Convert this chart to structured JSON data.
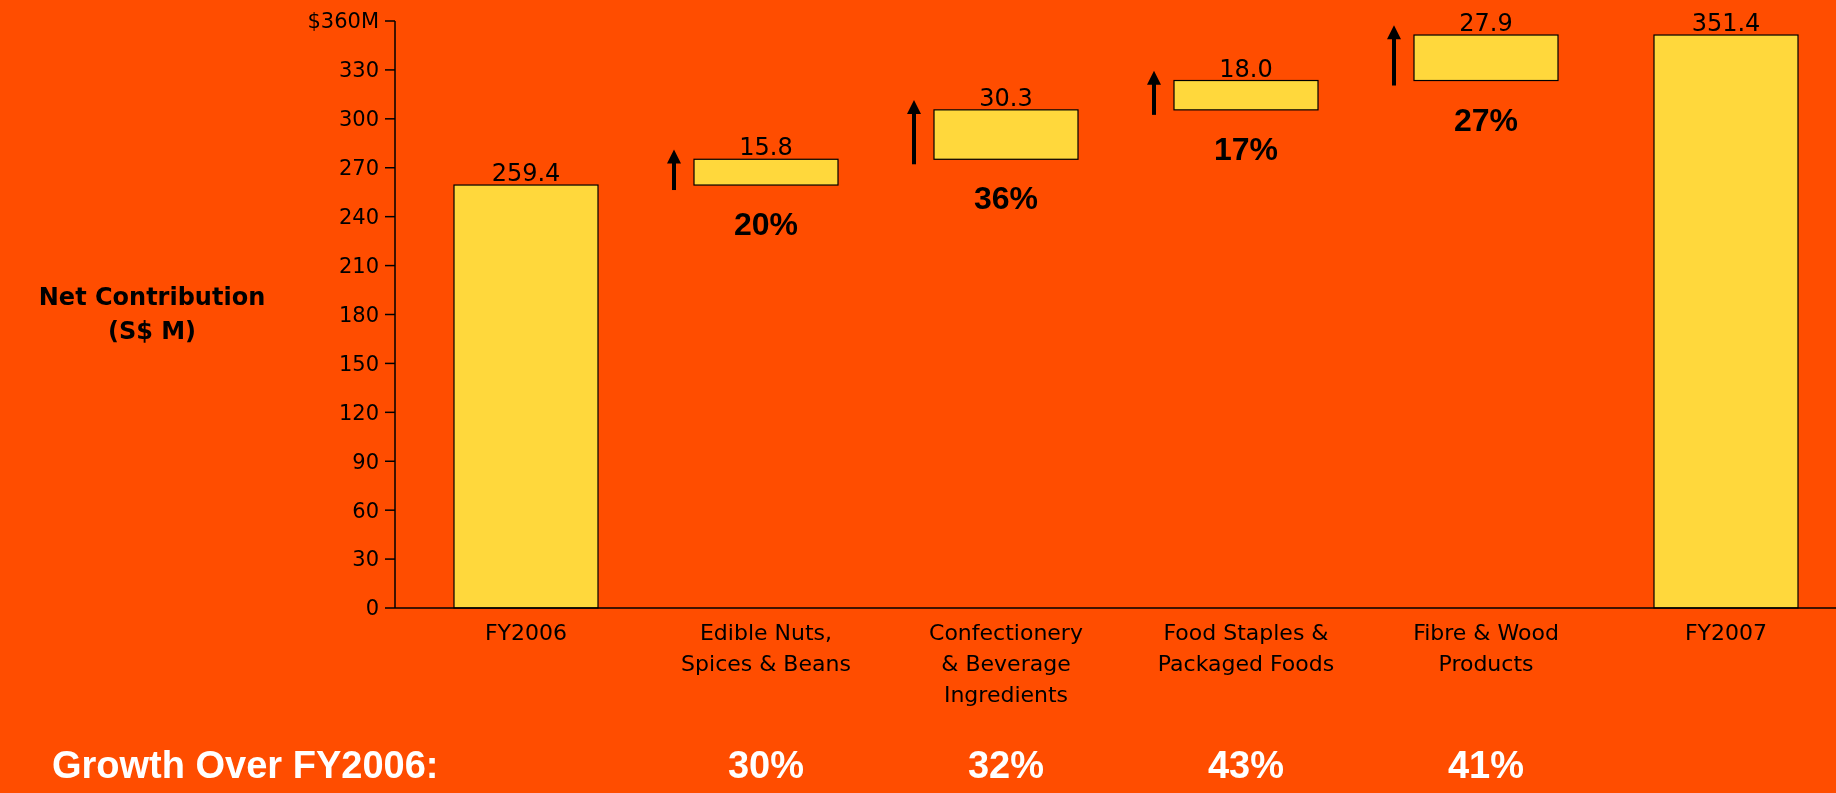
{
  "chart_data": {
    "type": "bar",
    "categories": [
      "FY2006",
      "Edible Nuts, Spices & Beans",
      "Confectionery & Beverage Ingredients",
      "Food Staples & Packaged Foods",
      "Fibre & Wood Products",
      "FY2007"
    ],
    "values": [
      259.4,
      15.8,
      30.3,
      18.0,
      27.9,
      351.4
    ],
    "base": [
      0,
      259.4,
      275.2,
      305.5,
      323.5,
      0
    ],
    "value_labels": [
      "259.4",
      "15.8",
      "30.3",
      "18.0",
      "27.9",
      "351.4"
    ],
    "color": "#ffd83c",
    "ylabel": "Net Contribution (S$ M)",
    "ylim": [
      0,
      360
    ],
    "yticks": [
      0,
      30,
      60,
      90,
      120,
      150,
      180,
      210,
      240,
      270,
      300,
      {
        "value": 330,
        "label": "330"
      },
      {
        "value": 360,
        "label": "$360M"
      }
    ],
    "grid": false,
    "annotations": [
      "20%",
      "36%",
      "17%",
      "27%",
      "Growth Over FY2006:",
      "30%",
      "32%",
      "43%",
      "41%"
    ]
  }
}
